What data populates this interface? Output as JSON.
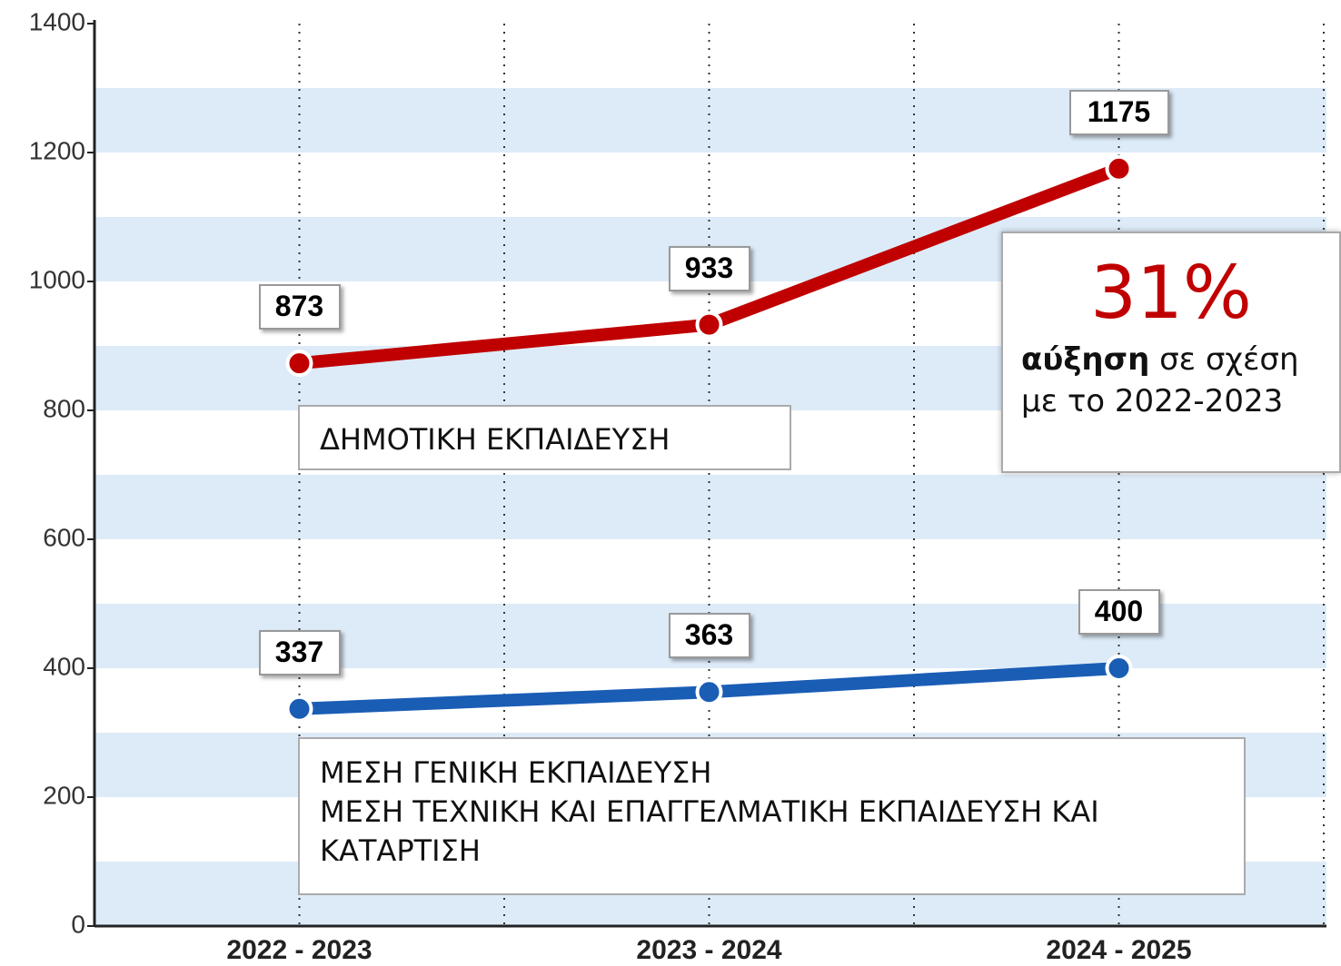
{
  "chart_data": {
    "type": "line",
    "categories": [
      "2022 - 2023",
      "2023 - 2024",
      "2024 - 2025"
    ],
    "series": [
      {
        "name": "ΔΗΜΟΤΙΚΗ ΕΚΠΑΙΔΕΥΣΗ",
        "color": "#c00000",
        "values": [
          873,
          933,
          1175
        ]
      },
      {
        "name": "ΜΕΣΗ ΓΕΝΙΚΗ ΕΚΠΑΙΔΕΥΣΗ\nΜΕΣΗ ΤΕΧΝΙΚΗ ΚΑΙ ΕΠΑΓΓΕΛΜΑΤΙΚΗ ΕΚΠΑΙΔΕΥΣΗ ΚΑΙ ΚΑΤΑΡΤΙΣΗ",
        "color": "#1a5db5",
        "values": [
          337,
          363,
          400
        ]
      }
    ],
    "ylim": [
      0,
      1400
    ],
    "yticks": [
      0,
      200,
      400,
      600,
      800,
      1000,
      1200,
      1400
    ],
    "stripe_color": "#ddebf8",
    "annotation": {
      "headline": "31%",
      "bold": "αύξηση",
      "text": "σε σχέση με το 2022-2023"
    }
  }
}
